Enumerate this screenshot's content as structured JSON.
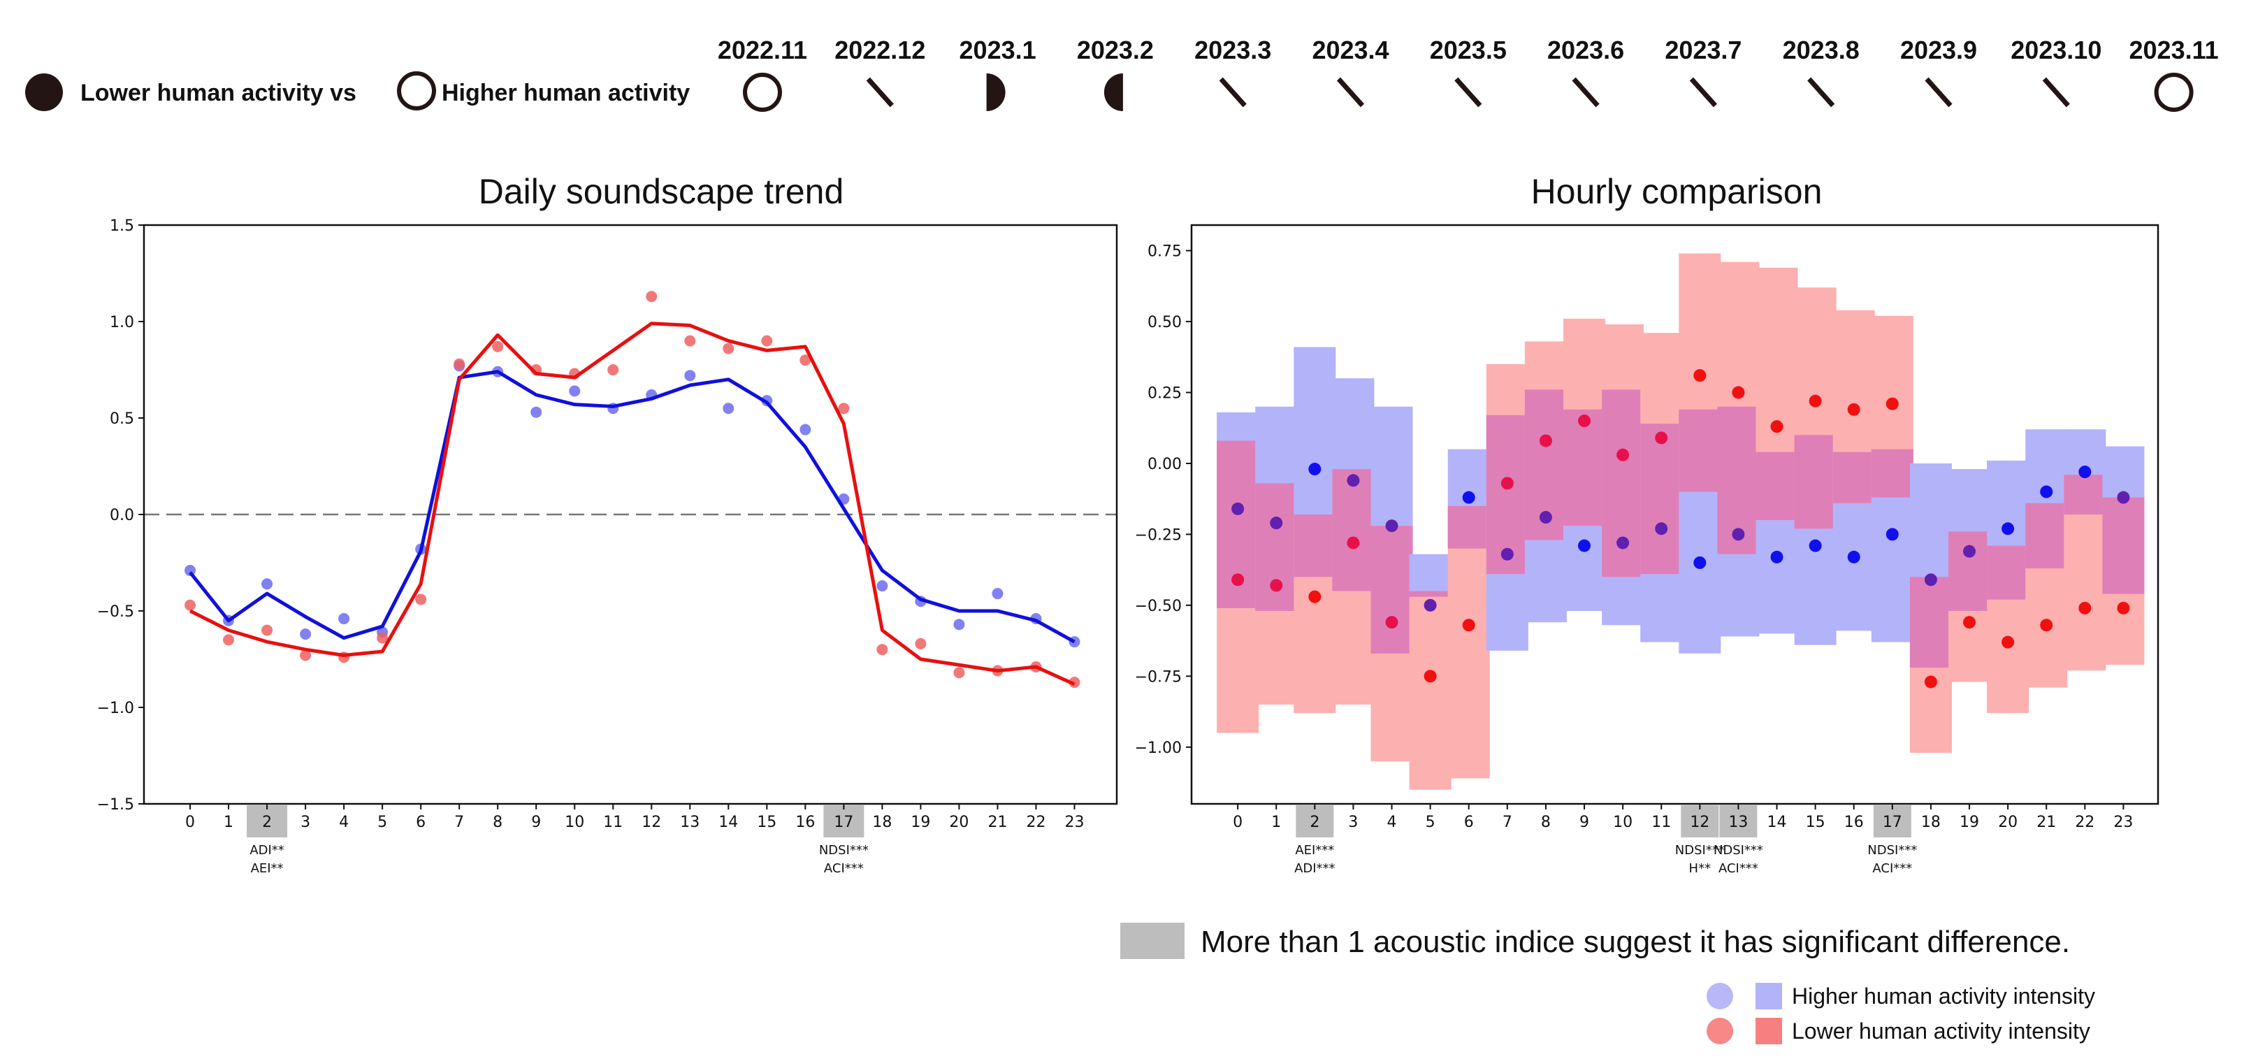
{
  "header_legend": {
    "lower_label": "Lower human activity vs",
    "higher_label": "Higher human activity"
  },
  "moon_phases": [
    {
      "label": "2022.11",
      "icon": "full-circle-icon"
    },
    {
      "label": "2022.12",
      "icon": "slash-icon"
    },
    {
      "label": "2023.1",
      "icon": "half-moon-right-icon"
    },
    {
      "label": "2023.2",
      "icon": "half-moon-left-icon"
    },
    {
      "label": "2023.3",
      "icon": "slash-icon"
    },
    {
      "label": "2023.4",
      "icon": "slash-icon"
    },
    {
      "label": "2023.5",
      "icon": "slash-icon"
    },
    {
      "label": "2023.6",
      "icon": "slash-icon"
    },
    {
      "label": "2023.7",
      "icon": "slash-icon"
    },
    {
      "label": "2023.8",
      "icon": "slash-icon"
    },
    {
      "label": "2023.9",
      "icon": "slash-icon"
    },
    {
      "label": "2023.10",
      "icon": "slash-icon"
    },
    {
      "label": "2023.11",
      "icon": "full-circle-icon"
    }
  ],
  "footer_legend": {
    "note": "More than 1 acoustic indice suggest it has significant difference.",
    "higher": "Higher human activity intensity",
    "lower": "Lower human activity intensity"
  },
  "colors": {
    "blue_line": "#1010dd",
    "red_line": "#e81010",
    "blue_point": "#6b6bee",
    "red_point": "#f06060",
    "blue_bar": "#b3b3fa",
    "red_bar": "#fcb0b0",
    "overlap_bar": "#df7fb8",
    "highlight": "#bdbdbd",
    "zero_line": "#777777"
  },
  "chart_data": [
    {
      "type": "line",
      "title": "Daily soundscape trend",
      "xlabel": "",
      "ylabel": "",
      "x": [
        0,
        1,
        2,
        3,
        4,
        5,
        6,
        7,
        8,
        9,
        10,
        11,
        12,
        13,
        14,
        15,
        16,
        17,
        18,
        19,
        20,
        21,
        22,
        23
      ],
      "xlim": [
        -1.2,
        24.1
      ],
      "ylim": [
        -1.5,
        1.5
      ],
      "yticks": [
        -1.5,
        -1.0,
        -0.5,
        0.0,
        0.5,
        1.0,
        1.5
      ],
      "ytick_labels": [
        "−1.5",
        "−1.0",
        "−0.5",
        "0.0",
        "0.5",
        "1.0",
        "1.5"
      ],
      "zero_line": true,
      "grid": false,
      "series": [
        {
          "name": "Higher human activity intensity",
          "color_key": "blue",
          "points": [
            -0.29,
            -0.55,
            -0.36,
            -0.62,
            -0.54,
            -0.61,
            -0.18,
            0.77,
            0.74,
            0.53,
            0.64,
            0.55,
            0.62,
            0.72,
            0.55,
            0.59,
            0.44,
            0.08,
            -0.37,
            -0.45,
            -0.57,
            -0.41,
            -0.54,
            -0.66
          ],
          "trend": [
            -0.3,
            -0.55,
            -0.41,
            -0.53,
            -0.64,
            -0.58,
            -0.19,
            0.71,
            0.74,
            0.62,
            0.57,
            0.56,
            0.6,
            0.67,
            0.7,
            0.58,
            0.35,
            0.03,
            -0.29,
            -0.44,
            -0.5,
            -0.5,
            -0.55,
            -0.66
          ]
        },
        {
          "name": "Lower human activity intensity",
          "color_key": "red",
          "points": [
            -0.47,
            -0.65,
            -0.6,
            -0.73,
            -0.74,
            -0.64,
            -0.44,
            0.78,
            0.87,
            0.75,
            0.73,
            0.75,
            1.13,
            0.9,
            0.86,
            0.9,
            0.8,
            0.55,
            -0.7,
            -0.67,
            -0.82,
            -0.81,
            -0.79,
            -0.87
          ],
          "trend": [
            -0.5,
            -0.6,
            -0.66,
            -0.7,
            -0.73,
            -0.71,
            -0.36,
            0.7,
            0.93,
            0.73,
            0.71,
            0.85,
            0.99,
            0.98,
            0.9,
            0.85,
            0.87,
            0.47,
            -0.6,
            -0.75,
            -0.78,
            -0.81,
            -0.79,
            -0.88
          ]
        }
      ],
      "highlights": [
        {
          "hour": 2,
          "indices": [
            "ADI**",
            "AEI**"
          ]
        },
        {
          "hour": 17,
          "indices": [
            "NDSI***",
            "ACI***"
          ]
        }
      ]
    },
    {
      "type": "bar",
      "title": "Hourly comparison",
      "xlabel": "",
      "ylabel": "",
      "x": [
        0,
        1,
        2,
        3,
        4,
        5,
        6,
        7,
        8,
        9,
        10,
        11,
        12,
        13,
        14,
        15,
        16,
        17,
        18,
        19,
        20,
        21,
        22,
        23
      ],
      "xlim": [
        -1.2,
        23.9
      ],
      "ylim": [
        -1.2,
        0.84
      ],
      "yticks": [
        -1.0,
        -0.75,
        -0.5,
        -0.25,
        0.0,
        0.25,
        0.5,
        0.75
      ],
      "ytick_labels": [
        "−1.00",
        "−0.75",
        "−0.50",
        "−0.25",
        "0.00",
        "0.25",
        "0.50",
        "0.75"
      ],
      "grid": false,
      "series": [
        {
          "name": "Higher human activity intensity",
          "color_key": "blue",
          "low": [
            -0.51,
            -0.52,
            -0.4,
            -0.45,
            -0.67,
            -0.47,
            -0.3,
            -0.66,
            -0.56,
            -0.52,
            -0.57,
            -0.63,
            -0.67,
            -0.61,
            -0.6,
            -0.64,
            -0.59,
            -0.63,
            -0.72,
            -0.52,
            -0.48,
            -0.37,
            -0.18,
            -0.46
          ],
          "high": [
            0.18,
            0.2,
            0.41,
            0.3,
            0.2,
            -0.32,
            0.05,
            0.17,
            0.26,
            0.19,
            0.26,
            0.14,
            0.19,
            0.2,
            0.04,
            0.1,
            0.04,
            0.05,
            0.0,
            -0.02,
            0.01,
            0.12,
            0.12,
            0.06
          ],
          "mean": [
            -0.16,
            -0.21,
            -0.02,
            -0.06,
            -0.22,
            -0.5,
            -0.12,
            -0.32,
            -0.19,
            -0.29,
            -0.28,
            -0.23,
            -0.35,
            -0.25,
            -0.33,
            -0.29,
            -0.33,
            -0.25,
            -0.41,
            -0.31,
            -0.23,
            -0.1,
            -0.03,
            -0.12
          ]
        },
        {
          "name": "Lower human activity intensity",
          "color_key": "red",
          "low": [
            -0.95,
            -0.85,
            -0.88,
            -0.85,
            -1.05,
            -1.15,
            -1.11,
            -0.39,
            -0.27,
            -0.22,
            -0.4,
            -0.39,
            -0.1,
            -0.32,
            -0.2,
            -0.23,
            -0.14,
            -0.12,
            -1.02,
            -0.77,
            -0.88,
            -0.79,
            -0.73,
            -0.71
          ],
          "high": [
            0.08,
            -0.07,
            -0.18,
            -0.02,
            -0.22,
            -0.45,
            -0.15,
            0.35,
            0.43,
            0.51,
            0.49,
            0.46,
            0.74,
            0.71,
            0.69,
            0.62,
            0.54,
            0.52,
            -0.4,
            -0.24,
            -0.29,
            -0.14,
            -0.04,
            -0.12
          ],
          "mean": [
            -0.41,
            -0.43,
            -0.47,
            -0.28,
            -0.56,
            -0.75,
            -0.57,
            -0.07,
            0.08,
            0.15,
            0.03,
            0.09,
            0.31,
            0.25,
            0.13,
            0.22,
            0.19,
            0.21,
            -0.77,
            -0.56,
            -0.63,
            -0.57,
            -0.51,
            -0.51
          ]
        }
      ],
      "highlights": [
        {
          "hour": 2,
          "indices": [
            "AEI***",
            "ADI***"
          ]
        },
        {
          "hour": 12,
          "indices": [
            "NDSI***",
            "H**"
          ]
        },
        {
          "hour": 13,
          "indices": [
            "NDSI***",
            "ACI***"
          ]
        },
        {
          "hour": 17,
          "indices": [
            "NDSI***",
            "ACI***"
          ]
        }
      ]
    }
  ]
}
